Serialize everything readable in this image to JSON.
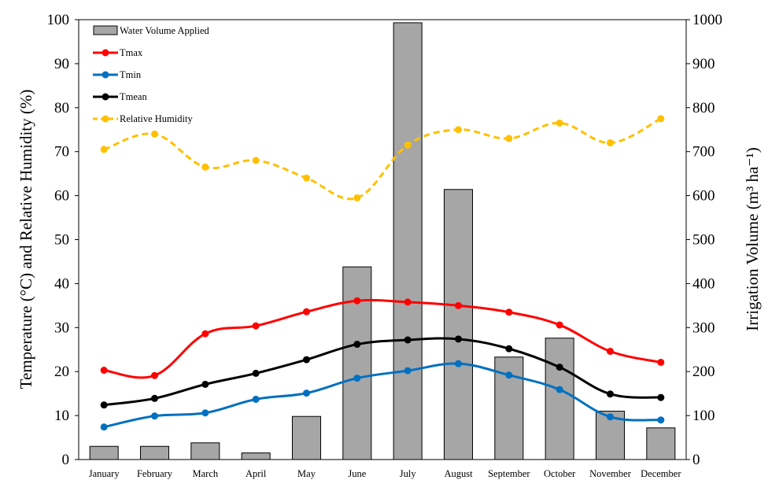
{
  "chart_data": {
    "type": "bar+line",
    "categories": [
      "January",
      "February",
      "March",
      "April",
      "May",
      "June",
      "July",
      "August",
      "September",
      "October",
      "November",
      "December"
    ],
    "bars": {
      "name": "Water Volume Applied",
      "axis": "right",
      "color": "#a6a6a6",
      "values": [
        30,
        30,
        38,
        15,
        98,
        438,
        993,
        614,
        233,
        276,
        110,
        72
      ]
    },
    "lines": [
      {
        "name": "Tmax",
        "axis": "left",
        "color": "#ff0000",
        "dashed": false,
        "values": [
          20.3,
          19.1,
          28.6,
          30.4,
          33.6,
          36.1,
          35.8,
          35.0,
          33.5,
          30.6,
          24.6,
          22.1
        ]
      },
      {
        "name": "Tmin",
        "axis": "left",
        "color": "#0070c0",
        "dashed": false,
        "values": [
          7.4,
          9.9,
          10.6,
          13.7,
          15.1,
          18.5,
          20.2,
          21.8,
          19.2,
          15.9,
          9.7,
          9.0
        ]
      },
      {
        "name": "Tmean",
        "axis": "left",
        "color": "#000000",
        "dashed": false,
        "values": [
          12.4,
          13.9,
          17.1,
          19.6,
          22.7,
          26.2,
          27.2,
          27.4,
          25.2,
          21.0,
          14.9,
          14.1
        ]
      },
      {
        "name": "Relative Humidity",
        "axis": "left",
        "color": "#ffc000",
        "dashed": true,
        "values": [
          70.5,
          74.0,
          66.5,
          68.0,
          64.0,
          59.5,
          71.5,
          75.0,
          73.0,
          76.5,
          72.0,
          77.5
        ]
      }
    ],
    "left_axis": {
      "label": "Temperature (°C) and Relative Humidity (%)",
      "min": 0,
      "max": 100,
      "step": 10
    },
    "right_axis": {
      "label": "Irrigation Volume (m³ ha⁻¹)",
      "min": 0,
      "max": 1000,
      "step": 100
    },
    "legend": {
      "position": "top-left",
      "entries": [
        "Water Volume Applied",
        "Tmax",
        "Tmin",
        "Tmean",
        "Relative Humidity"
      ]
    }
  }
}
